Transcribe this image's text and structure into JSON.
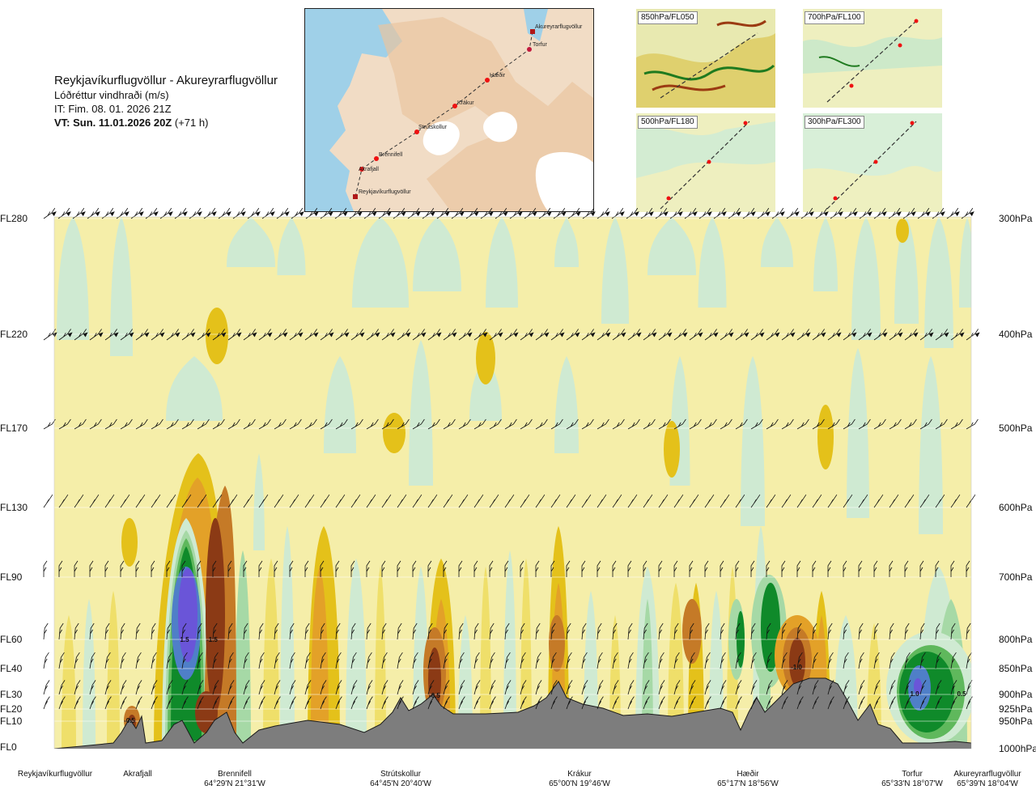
{
  "header": {
    "route": "Reykjavíkurflugvöllur - Akureyrarflugvöllur",
    "parameter": "Lóðréttur vindhraði (m/s)",
    "initial_time": "IT: Fim. 08. 01. 2026 21Z",
    "valid_time_bold": "VT: Sun. 11.01.2026 20Z",
    "valid_time_lead": "(+71 h)"
  },
  "route_map": {
    "waypoints": [
      "Akureyrarflugvöllur",
      "Torfur",
      "Hæðir",
      "Krákur",
      "Strútskollur",
      "Brennifell",
      "Akrafjall",
      "Reykjavíkurflugvöllur"
    ]
  },
  "mini_maps": [
    {
      "label": "850hPa/FL050"
    },
    {
      "label": "700hPa/FL100"
    },
    {
      "label": "500hPa/FL180"
    },
    {
      "label": "300hPa/FL300"
    }
  ],
  "chart_data": {
    "type": "heatmap",
    "title": "Lóðréttur vindhraði (m/s)",
    "xlabel": "",
    "ylabel": "",
    "y_left_ticks": [
      "FL280",
      "FL220",
      "FL170",
      "FL130",
      "FL90",
      "FL60",
      "FL40",
      "FL30",
      "FL20",
      "FL10",
      "FL0"
    ],
    "y_right_ticks": [
      "300hPa",
      "400hPa",
      "500hPa",
      "600hPa",
      "700hPa",
      "800hPa",
      "850hPa",
      "900hPa",
      "925hPa",
      "950hPa",
      "1000hPa"
    ],
    "pressure_levels_hPa": [
      300,
      400,
      500,
      600,
      700,
      800,
      850,
      900,
      925,
      950,
      1000
    ],
    "locations": [
      {
        "name": "Reykjavíkurflugvöllur",
        "coord": ""
      },
      {
        "name": "Akrafjall",
        "coord": ""
      },
      {
        "name": "Brennifell",
        "coord": "64°29'N 21°31'W"
      },
      {
        "name": "Strútskollur",
        "coord": "64°45'N 20°40'W"
      },
      {
        "name": "Krákur",
        "coord": "65°00'N 19°46'W"
      },
      {
        "name": "Hæðir",
        "coord": "65°17'N 18°56'W"
      },
      {
        "name": "Torfur",
        "coord": "65°33'N 18°07'W"
      },
      {
        "name": "Akureyrarflugvöllur",
        "coord": "65°39'N 18°04'W"
      }
    ],
    "contour_labels": [
      {
        "text": "1.5",
        "location": "Brennifell",
        "level_hPa": 800
      },
      {
        "text": "-1.5",
        "location": "Brennifell",
        "level_hPa": 800
      },
      {
        "text": "-0.5",
        "location": "Akrafjall",
        "level_hPa": 950
      },
      {
        "text": "-0.5",
        "location": "Strútskollur",
        "level_hPa": 900
      },
      {
        "text": "-1.0",
        "location": "Hæðir",
        "level_hPa": 850
      },
      {
        "text": "1.0",
        "location": "Torfur",
        "level_hPa": 900
      },
      {
        "text": "0.5",
        "location": "Akureyrarflugvöllur",
        "level_hPa": 900
      }
    ],
    "cores": [
      {
        "location": "Brennifell",
        "level_hPa": 800,
        "value_ms": 1.5,
        "sign": "up"
      },
      {
        "location": "Brennifell",
        "level_hPa": 800,
        "value_ms": -1.5,
        "sign": "down"
      },
      {
        "location": "Strútskollur",
        "level_hPa": 880,
        "value_ms": -0.8,
        "sign": "down"
      },
      {
        "location": "Krákur",
        "level_hPa": 820,
        "value_ms": -0.6,
        "sign": "down"
      },
      {
        "location": "Hæðir",
        "level_hPa": 830,
        "value_ms": -1.0,
        "sign": "down"
      },
      {
        "location": "Hæðir",
        "level_hPa": 800,
        "value_ms": 0.7,
        "sign": "up"
      },
      {
        "location": "Torfur",
        "level_hPa": 880,
        "value_ms": 1.0,
        "sign": "up"
      }
    ],
    "colors": {
      "strong_up": "#6a55d8",
      "up_2": "#4f7fc8",
      "up_1": "#0f8a2a",
      "up_0": "#5fb85c",
      "weak_up": "#a6d9a6",
      "faint_up": "#cfead2",
      "neutral": "#f5eea9",
      "faint_down": "#efdf6a",
      "weak_down": "#e4c11a",
      "down_1": "#e3a128",
      "down_2": "#c57a27",
      "strong_down": "#8b3a15",
      "terrain": "#7d7d7d"
    }
  }
}
